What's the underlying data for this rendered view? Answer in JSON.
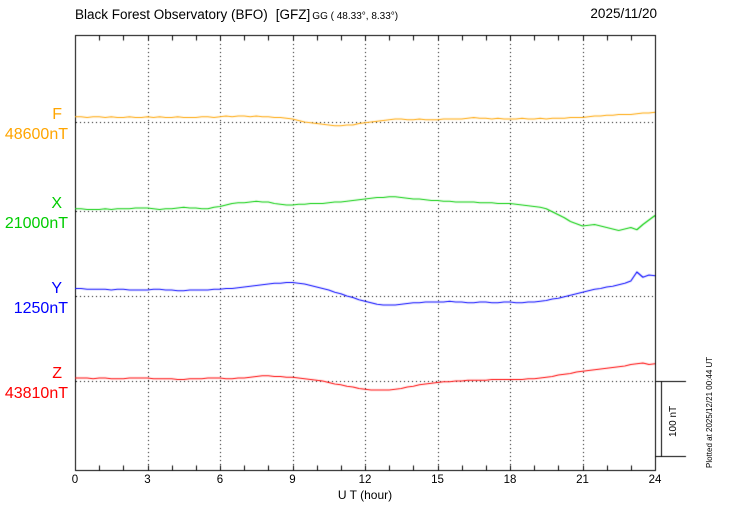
{
  "header": {
    "title": "Black Forest Observatory (BFO)",
    "org": "[GFZ]",
    "coords": "GG ( 48.33°,  8.33°)",
    "date": "2025/11/20"
  },
  "axis": {
    "x_title": "U T (hour)",
    "x_ticks": [
      0,
      3,
      6,
      9,
      12,
      15,
      18,
      21,
      24
    ]
  },
  "side": {
    "plotted_at": "Plotted at 2025/12/21 00:44 UT"
  },
  "chart_data": {
    "type": "line",
    "title": "Black Forest Observatory (BFO) [GFZ] magnetogram 2025/11/20",
    "xlabel": "U T (hour)",
    "ylabel": "nT",
    "x_min_hours": 0,
    "x_max_hours": 24,
    "sample_step_hours": 0.25,
    "grid": "dotted-vertical-every-3h-and-dotted-baselines",
    "scale_bar": {
      "label": "100 nT",
      "nT": 100
    },
    "series": [
      {
        "name": "F",
        "color": "#FFA500",
        "baseline_nT": 48600,
        "baseline_label": "48600nT",
        "values": [
          48607,
          48607,
          48606,
          48607,
          48607,
          48606,
          48607,
          48606,
          48606,
          48607,
          48606,
          48606,
          48607,
          48606,
          48607,
          48606,
          48606,
          48607,
          48606,
          48606,
          48606,
          48607,
          48607,
          48606,
          48607,
          48608,
          48607,
          48608,
          48608,
          48607,
          48608,
          48607,
          48607,
          48606,
          48606,
          48605,
          48604,
          48602,
          48600,
          48599,
          48598,
          48597,
          48596,
          48595,
          48595,
          48596,
          48596,
          48598,
          48599,
          48600,
          48601,
          48602,
          48603,
          48604,
          48604,
          48603,
          48603,
          48604,
          48603,
          48603,
          48603,
          48604,
          48604,
          48604,
          48604,
          48605,
          48606,
          48605,
          48605,
          48604,
          48605,
          48604,
          48604,
          48604,
          48605,
          48604,
          48604,
          48605,
          48604,
          48605,
          48605,
          48605,
          48606,
          48606,
          48606,
          48607,
          48608,
          48608,
          48609,
          48609,
          48610,
          48610,
          48610,
          48611,
          48612,
          48612,
          48613
        ]
      },
      {
        "name": "X",
        "color": "#00CC00",
        "baseline_nT": 21000,
        "baseline_label": "21000nT",
        "values": [
          21003,
          21003,
          21002,
          21002,
          21002,
          21003,
          21002,
          21003,
          21003,
          21003,
          21004,
          21004,
          21004,
          21003,
          21002,
          21003,
          21003,
          21004,
          21005,
          21004,
          21004,
          21003,
          21003,
          21005,
          21006,
          21008,
          21010,
          21011,
          21011,
          21012,
          21013,
          21012,
          21012,
          21010,
          21009,
          21008,
          21008,
          21009,
          21009,
          21010,
          21010,
          21010,
          21011,
          21012,
          21012,
          21013,
          21014,
          21015,
          21016,
          21017,
          21018,
          21018,
          21019,
          21019,
          21018,
          21017,
          21016,
          21016,
          21015,
          21014,
          21014,
          21013,
          21013,
          21012,
          21012,
          21012,
          21012,
          21011,
          21011,
          21011,
          21010,
          21010,
          21010,
          21009,
          21008,
          21007,
          21006,
          21005,
          21003,
          20999,
          20995,
          20991,
          20986,
          20983,
          20980,
          20981,
          20982,
          20980,
          20978,
          20976,
          20974,
          20976,
          20978,
          20975,
          20982,
          20988,
          20994
        ]
      },
      {
        "name": "Y",
        "color": "#0000FF",
        "baseline_nT": 1250,
        "baseline_label": "1250nT",
        "values": [
          1260,
          1260,
          1259,
          1259,
          1259,
          1259,
          1258,
          1259,
          1259,
          1258,
          1258,
          1258,
          1258,
          1259,
          1259,
          1258,
          1258,
          1257,
          1257,
          1258,
          1258,
          1258,
          1258,
          1259,
          1259,
          1260,
          1260,
          1261,
          1262,
          1263,
          1264,
          1265,
          1266,
          1267,
          1267,
          1268,
          1268,
          1267,
          1266,
          1264,
          1262,
          1260,
          1258,
          1255,
          1253,
          1250,
          1248,
          1245,
          1243,
          1241,
          1239,
          1238,
          1238,
          1238,
          1239,
          1240,
          1241,
          1241,
          1242,
          1242,
          1242,
          1242,
          1243,
          1242,
          1242,
          1241,
          1241,
          1242,
          1242,
          1241,
          1241,
          1242,
          1242,
          1241,
          1241,
          1242,
          1242,
          1243,
          1244,
          1246,
          1247,
          1249,
          1251,
          1253,
          1255,
          1257,
          1259,
          1260,
          1262,
          1263,
          1265,
          1267,
          1270,
          1282,
          1275,
          1278,
          1277
        ]
      },
      {
        "name": "Z",
        "color": "#FF0000",
        "baseline_nT": 43810,
        "baseline_label": "43810nT",
        "values": [
          43814,
          43814,
          43814,
          43813,
          43814,
          43814,
          43813,
          43813,
          43813,
          43814,
          43814,
          43814,
          43814,
          43813,
          43813,
          43813,
          43813,
          43812,
          43812,
          43813,
          43813,
          43813,
          43814,
          43814,
          43814,
          43813,
          43813,
          43814,
          43814,
          43815,
          43816,
          43817,
          43817,
          43816,
          43816,
          43815,
          43815,
          43814,
          43813,
          43812,
          43811,
          43810,
          43808,
          43806,
          43805,
          43803,
          43802,
          43800,
          43799,
          43798,
          43798,
          43798,
          43798,
          43799,
          43800,
          43802,
          43803,
          43805,
          43806,
          43807,
          43808,
          43809,
          43809,
          43810,
          43810,
          43811,
          43811,
          43811,
          43811,
          43812,
          43812,
          43812,
          43812,
          43812,
          43812,
          43813,
          43813,
          43814,
          43815,
          43816,
          43818,
          43819,
          43820,
          43822,
          43823,
          43824,
          43825,
          43826,
          43827,
          43828,
          43829,
          43830,
          43832,
          43833,
          43834,
          43832,
          43833
        ]
      }
    ]
  }
}
